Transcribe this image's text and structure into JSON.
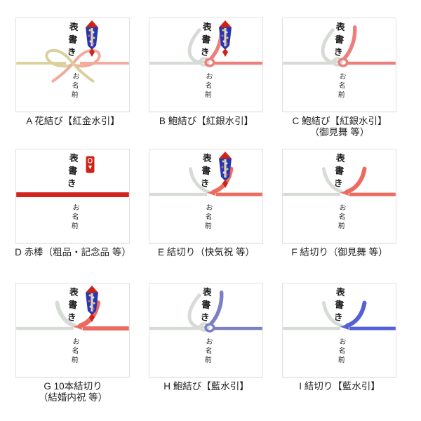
{
  "page": {
    "background": "#ffffff"
  },
  "texts": {
    "omotegaki": "表書き",
    "onamae": "お名前"
  },
  "colors": {
    "silver": "#d7dbd6",
    "gold": "#d9d09c",
    "pink": "#f2aa9c",
    "red_silver": "#ec7f7c",
    "red_kiri": "#ec6a5e",
    "red_bar": "#d2231c",
    "indigo_awabi": "#7c81c3",
    "indigo_kiri": "#5560d6",
    "card_border": "#e2e2e2"
  },
  "ornament_colors": {
    "red": "#cc2418",
    "blue": "#2736b4",
    "strip": "#f0e6c0"
  },
  "cells": [
    {
      "id": "A",
      "label": "A 花結び【紅金水引】",
      "label2": "",
      "knot": "hana",
      "ornament": "noshi",
      "left_color": "#d9d09c",
      "right_color": "#f2aa9c"
    },
    {
      "id": "B",
      "label": "B 鮑結び【紅銀水引】",
      "label2": "",
      "knot": "awabi",
      "ornament": "noshi",
      "left_color": "#d7dbd6",
      "right_color": "#ec7f7c"
    },
    {
      "id": "C",
      "label": "C 鮑結び【紅銀水引】",
      "label2": "（御見舞 等）",
      "knot": "awabi",
      "ornament": "none",
      "left_color": "#d7dbd6",
      "right_color": "#ec7f7c"
    },
    {
      "id": "D",
      "label": "D 赤棒（粗品・記念品 等）",
      "label2": "",
      "knot": "bar",
      "ornament": "stamp",
      "left_color": "#d2231c",
      "right_color": "#d2231c"
    },
    {
      "id": "E",
      "label": "E 結切り（快気祝 等）",
      "label2": "",
      "knot": "kiri",
      "ornament": "noshi",
      "left_color": "#d7dbd6",
      "right_color": "#ec6a5e"
    },
    {
      "id": "F",
      "label": "F 結切り（御見舞 等）",
      "label2": "",
      "knot": "kiri",
      "ornament": "none",
      "left_color": "#d7dbd6",
      "right_color": "#ec6a5e"
    },
    {
      "id": "G",
      "label": "G 10本結切り",
      "label2": "（結婚内祝 等）",
      "knot": "kiri10",
      "ornament": "noshi",
      "left_color": "#d7dbd6",
      "right_color": "#ec6a5e"
    },
    {
      "id": "H",
      "label": "H 鮑結び【藍水引】",
      "label2": "",
      "knot": "awabi",
      "ornament": "none",
      "left_color": "#d7dbd6",
      "right_color": "#7c81c3"
    },
    {
      "id": "I",
      "label": "I 結切り【藍水引】",
      "label2": "",
      "knot": "kiri",
      "ornament": "none",
      "left_color": "#d7dbd6",
      "right_color": "#5560d6"
    }
  ]
}
